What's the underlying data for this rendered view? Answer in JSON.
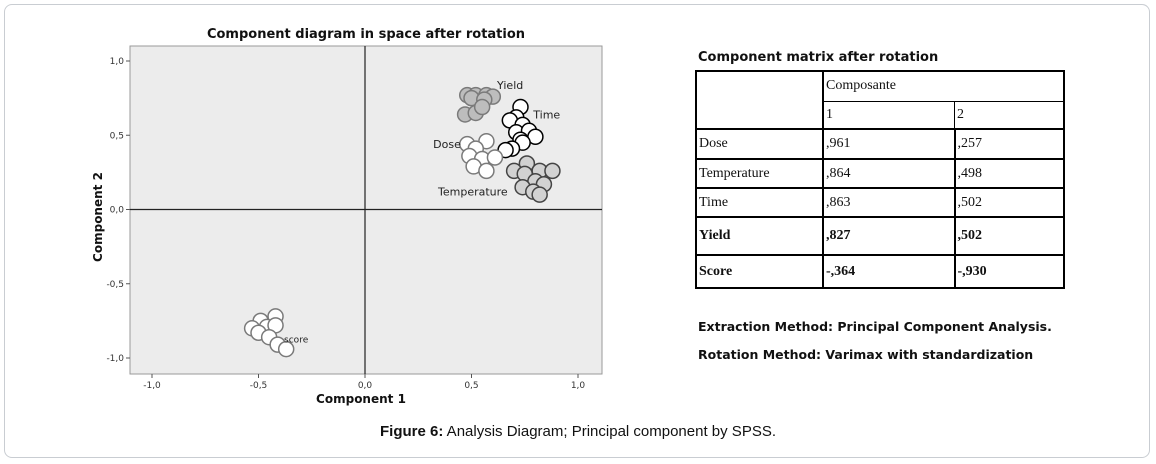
{
  "chart_data": {
    "type": "scatter",
    "title": "Component diagram in space after rotation",
    "xlabel": "Component 1",
    "ylabel": "Component 2",
    "xlim": [
      -1.0,
      1.0
    ],
    "ylim": [
      -1.0,
      1.0
    ],
    "x_ticks": [
      "-1,0",
      "-0,5",
      "0,0",
      "0,5",
      "1,0"
    ],
    "y_ticks": [
      "1,0",
      "0,5",
      "0,0",
      "-0,5",
      "-1,0"
    ],
    "grid": false,
    "series": [
      {
        "name": "Yield",
        "fill": "#bdbdbd",
        "stroke": "#7a7a7a",
        "points": [
          [
            0.48,
            0.77
          ],
          [
            0.52,
            0.77
          ],
          [
            0.57,
            0.77
          ],
          [
            0.6,
            0.76
          ],
          [
            0.5,
            0.75
          ],
          [
            0.56,
            0.74
          ],
          [
            0.47,
            0.64
          ],
          [
            0.52,
            0.65
          ],
          [
            0.55,
            0.69
          ]
        ]
      },
      {
        "name": "Time",
        "fill": "#ffffff",
        "stroke": "#000000",
        "points": [
          [
            0.73,
            0.69
          ],
          [
            0.71,
            0.62
          ],
          [
            0.68,
            0.6
          ],
          [
            0.74,
            0.57
          ],
          [
            0.71,
            0.52
          ],
          [
            0.77,
            0.53
          ],
          [
            0.73,
            0.47
          ],
          [
            0.8,
            0.49
          ],
          [
            0.74,
            0.45
          ],
          [
            0.69,
            0.41
          ],
          [
            0.66,
            0.4
          ]
        ]
      },
      {
        "name": "Dose",
        "fill": "#ffffff",
        "stroke": "#7a7a7a",
        "points": [
          [
            0.48,
            0.44
          ],
          [
            0.57,
            0.46
          ],
          [
            0.52,
            0.41
          ],
          [
            0.49,
            0.36
          ],
          [
            0.55,
            0.34
          ],
          [
            0.61,
            0.35
          ],
          [
            0.51,
            0.29
          ],
          [
            0.57,
            0.26
          ]
        ]
      },
      {
        "name": "Temperature",
        "fill": "#d2d2d2",
        "stroke": "#444444",
        "points": [
          [
            0.76,
            0.31
          ],
          [
            0.7,
            0.26
          ],
          [
            0.75,
            0.24
          ],
          [
            0.82,
            0.26
          ],
          [
            0.88,
            0.26
          ],
          [
            0.8,
            0.19
          ],
          [
            0.84,
            0.17
          ],
          [
            0.74,
            0.15
          ],
          [
            0.79,
            0.12
          ],
          [
            0.82,
            0.1
          ]
        ]
      },
      {
        "name": "score",
        "fill": "#ffffff",
        "stroke": "#7a7a7a",
        "points": [
          [
            -0.42,
            -0.72
          ],
          [
            -0.49,
            -0.75
          ],
          [
            -0.53,
            -0.8
          ],
          [
            -0.46,
            -0.79
          ],
          [
            -0.42,
            -0.78
          ],
          [
            -0.5,
            -0.83
          ],
          [
            -0.45,
            -0.86
          ],
          [
            -0.41,
            -0.91
          ],
          [
            -0.37,
            -0.94
          ]
        ]
      }
    ],
    "point_labels": [
      "Yield",
      "Time",
      "Dose",
      "Temperature",
      "score"
    ]
  },
  "matrix": {
    "title": "Component matrix after rotation",
    "group_header": "Composante",
    "col_headers": [
      "1",
      "2"
    ],
    "rows": [
      {
        "label": "Dose",
        "c1": ",961",
        "c2": ",257"
      },
      {
        "label": "Temperature",
        "c1": ",864",
        "c2": ",498"
      },
      {
        "label": "Time",
        "c1": ",863",
        "c2": ",502"
      },
      {
        "label": "Yield",
        "c1": ",827",
        "c2": ",502"
      },
      {
        "label": "Score",
        "c1": "-,364",
        "c2": "-,930"
      }
    ]
  },
  "notes": {
    "extraction": "Extraction Method: Principal Component Analysis.",
    "rotation": "Rotation Method: Varimax with standardization"
  },
  "caption": {
    "label": "Figure 6:",
    "text": " Analysis Diagram; Principal component by SPSS."
  }
}
